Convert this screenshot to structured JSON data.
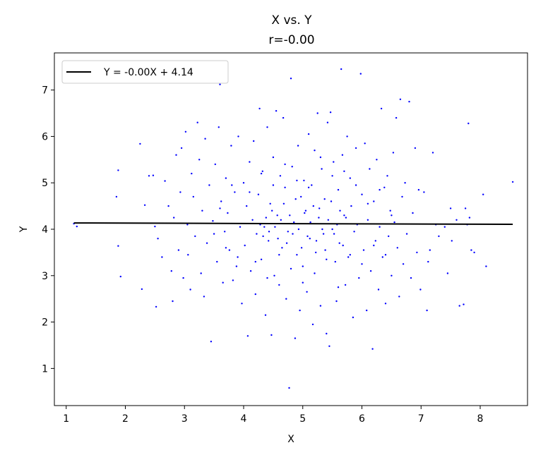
{
  "chart_data": {
    "type": "scatter",
    "title": "X vs. Y",
    "subtitle": "r=-0.00",
    "xlabel": "X",
    "ylabel": "Y",
    "xlim": [
      0.8,
      8.8
    ],
    "ylim": [
      0.2,
      7.8
    ],
    "xticks": [
      1,
      2,
      3,
      4,
      5,
      6,
      7,
      8
    ],
    "yticks": [
      1,
      2,
      3,
      4,
      5,
      6,
      7
    ],
    "grid": false,
    "legend_position": "top-left",
    "fit_line": {
      "label": "Y = -0.00X + 4.14",
      "slope": -0.004,
      "intercept": 4.14,
      "x_range": [
        1.13,
        8.55
      ],
      "color": "#000000"
    },
    "point_color": "#0000ff",
    "points": [
      [
        1.13,
        4.12
      ],
      [
        1.18,
        4.06
      ],
      [
        1.85,
        4.7
      ],
      [
        1.88,
        5.27
      ],
      [
        1.88,
        3.64
      ],
      [
        1.92,
        2.98
      ],
      [
        2.25,
        5.84
      ],
      [
        2.28,
        2.71
      ],
      [
        2.33,
        4.52
      ],
      [
        2.4,
        5.15
      ],
      [
        2.47,
        5.16
      ],
      [
        2.5,
        4.06
      ],
      [
        2.52,
        2.33
      ],
      [
        2.55,
        3.8
      ],
      [
        2.62,
        3.4
      ],
      [
        2.67,
        5.04
      ],
      [
        2.73,
        4.5
      ],
      [
        2.78,
        3.1
      ],
      [
        2.8,
        2.45
      ],
      [
        2.82,
        4.25
      ],
      [
        2.86,
        5.6
      ],
      [
        2.9,
        3.55
      ],
      [
        2.93,
        4.8
      ],
      [
        2.95,
        5.75
      ],
      [
        2.98,
        2.95
      ],
      [
        3.02,
        6.1
      ],
      [
        3.05,
        4.1
      ],
      [
        3.06,
        3.45
      ],
      [
        3.1,
        2.7
      ],
      [
        3.12,
        5.2
      ],
      [
        3.15,
        4.7
      ],
      [
        3.18,
        3.85
      ],
      [
        3.22,
        6.3
      ],
      [
        3.25,
        5.5
      ],
      [
        3.28,
        3.05
      ],
      [
        3.3,
        4.4
      ],
      [
        3.33,
        2.55
      ],
      [
        3.35,
        5.95
      ],
      [
        3.38,
        3.7
      ],
      [
        3.42,
        4.95
      ],
      [
        3.45,
        1.58
      ],
      [
        3.48,
        4.18
      ],
      [
        3.52,
        5.4
      ],
      [
        3.55,
        3.3
      ],
      [
        3.58,
        6.2
      ],
      [
        3.6,
        7.12
      ],
      [
        3.62,
        4.6
      ],
      [
        3.65,
        2.85
      ],
      [
        3.68,
        3.95
      ],
      [
        3.7,
        5.1
      ],
      [
        3.73,
        4.35
      ],
      [
        3.76,
        3.55
      ],
      [
        3.79,
        5.8
      ],
      [
        3.82,
        2.9
      ],
      [
        3.85,
        4.8
      ],
      [
        3.88,
        3.2
      ],
      [
        3.91,
        6.0
      ],
      [
        3.94,
        4.05
      ],
      [
        3.97,
        2.4
      ],
      [
        4.0,
        5.0
      ],
      [
        4.02,
        3.65
      ],
      [
        4.05,
        4.5
      ],
      [
        4.07,
        1.7
      ],
      [
        4.1,
        5.45
      ],
      [
        4.12,
        3.1
      ],
      [
        4.15,
        4.2
      ],
      [
        4.17,
        5.9
      ],
      [
        4.2,
        2.6
      ],
      [
        4.22,
        3.9
      ],
      [
        4.25,
        4.75
      ],
      [
        4.27,
        6.6
      ],
      [
        4.3,
        3.35
      ],
      [
        4.32,
        5.25
      ],
      [
        4.35,
        4.05
      ],
      [
        4.37,
        2.15
      ],
      [
        4.4,
        6.2
      ],
      [
        4.42,
        3.75
      ],
      [
        4.45,
        4.55
      ],
      [
        4.47,
        1.72
      ],
      [
        4.5,
        5.55
      ],
      [
        4.52,
        3.0
      ],
      [
        4.55,
        6.55
      ],
      [
        4.57,
        4.3
      ],
      [
        4.6,
        2.8
      ],
      [
        4.62,
        5.15
      ],
      [
        4.65,
        3.6
      ],
      [
        4.67,
        6.4
      ],
      [
        4.7,
        4.9
      ],
      [
        4.72,
        2.5
      ],
      [
        4.75,
        3.95
      ],
      [
        4.77,
        0.58
      ],
      [
        4.8,
        7.25
      ],
      [
        4.82,
        5.35
      ],
      [
        4.85,
        4.15
      ],
      [
        4.87,
        1.65
      ],
      [
        4.9,
        3.45
      ],
      [
        4.92,
        5.8
      ],
      [
        4.95,
        2.25
      ],
      [
        4.97,
        4.7
      ],
      [
        5.0,
        3.2
      ],
      [
        5.02,
        5.05
      ],
      [
        5.05,
        4.4
      ],
      [
        5.07,
        2.65
      ],
      [
        5.1,
        6.05
      ],
      [
        5.12,
        3.8
      ],
      [
        5.15,
        4.95
      ],
      [
        5.17,
        1.95
      ],
      [
        5.2,
        5.7
      ],
      [
        5.22,
        3.5
      ],
      [
        5.25,
        6.5
      ],
      [
        5.27,
        4.25
      ],
      [
        5.3,
        2.35
      ],
      [
        5.32,
        5.3
      ],
      [
        5.35,
        3.9
      ],
      [
        5.37,
        4.65
      ],
      [
        5.4,
        1.75
      ],
      [
        5.42,
        6.3
      ],
      [
        5.45,
        1.48
      ],
      [
        5.47,
        6.52
      ],
      [
        5.5,
        4.0
      ],
      [
        5.52,
        5.45
      ],
      [
        5.55,
        3.3
      ],
      [
        5.57,
        2.45
      ],
      [
        5.6,
        4.85
      ],
      [
        5.62,
        3.7
      ],
      [
        5.65,
        7.45
      ],
      [
        5.67,
        5.6
      ],
      [
        5.7,
        4.3
      ],
      [
        5.72,
        2.8
      ],
      [
        5.75,
        6.0
      ],
      [
        5.77,
        3.4
      ],
      [
        5.8,
        5.1
      ],
      [
        5.82,
        4.5
      ],
      [
        5.85,
        2.1
      ],
      [
        5.87,
        3.95
      ],
      [
        5.9,
        5.75
      ],
      [
        5.92,
        4.1
      ],
      [
        5.95,
        2.95
      ],
      [
        5.98,
        7.35
      ],
      [
        6.0,
        4.75
      ],
      [
        6.03,
        3.55
      ],
      [
        6.05,
        5.85
      ],
      [
        6.08,
        2.25
      ],
      [
        6.1,
        4.2
      ],
      [
        6.13,
        5.3
      ],
      [
        6.15,
        3.1
      ],
      [
        6.18,
        1.42
      ],
      [
        6.2,
        4.6
      ],
      [
        6.23,
        3.75
      ],
      [
        6.25,
        5.5
      ],
      [
        6.28,
        2.7
      ],
      [
        6.3,
        4.05
      ],
      [
        6.33,
        6.6
      ],
      [
        6.35,
        3.4
      ],
      [
        6.38,
        4.9
      ],
      [
        6.4,
        2.4
      ],
      [
        6.43,
        5.15
      ],
      [
        6.45,
        3.85
      ],
      [
        6.48,
        4.4
      ],
      [
        6.5,
        3.0
      ],
      [
        6.53,
        5.65
      ],
      [
        6.55,
        4.15
      ],
      [
        6.58,
        6.4
      ],
      [
        6.6,
        3.6
      ],
      [
        6.63,
        2.55
      ],
      [
        6.65,
        6.8
      ],
      [
        6.68,
        4.7
      ],
      [
        6.7,
        3.25
      ],
      [
        6.73,
        5.0
      ],
      [
        6.76,
        3.9
      ],
      [
        6.8,
        6.75
      ],
      [
        6.83,
        2.95
      ],
      [
        6.86,
        4.35
      ],
      [
        6.9,
        5.75
      ],
      [
        6.93,
        3.5
      ],
      [
        6.96,
        4.85
      ],
      [
        6.99,
        2.7
      ],
      [
        7.05,
        4.8
      ],
      [
        7.1,
        2.25
      ],
      [
        7.12,
        3.3
      ],
      [
        7.15,
        3.55
      ],
      [
        7.2,
        5.65
      ],
      [
        7.25,
        4.1
      ],
      [
        7.3,
        3.85
      ],
      [
        7.4,
        4.05
      ],
      [
        7.45,
        3.05
      ],
      [
        7.5,
        4.45
      ],
      [
        7.52,
        3.75
      ],
      [
        7.6,
        4.2
      ],
      [
        7.65,
        2.35
      ],
      [
        7.72,
        2.38
      ],
      [
        7.75,
        4.45
      ],
      [
        7.78,
        4.1
      ],
      [
        7.8,
        6.28
      ],
      [
        7.82,
        4.25
      ],
      [
        7.85,
        3.55
      ],
      [
        7.9,
        3.5
      ],
      [
        8.05,
        4.75
      ],
      [
        8.1,
        3.2
      ],
      [
        8.55,
        5.02
      ],
      [
        4.28,
        4.1
      ],
      [
        4.33,
        3.85
      ],
      [
        4.38,
        4.25
      ],
      [
        4.43,
        3.95
      ],
      [
        4.48,
        4.4
      ],
      [
        4.53,
        4.05
      ],
      [
        4.58,
        3.8
      ],
      [
        4.63,
        4.2
      ],
      [
        4.68,
        4.55
      ],
      [
        4.73,
        3.7
      ],
      [
        4.78,
        4.3
      ],
      [
        4.83,
        3.9
      ],
      [
        4.88,
        4.65
      ],
      [
        4.93,
        4.0
      ],
      [
        4.98,
        3.6
      ],
      [
        5.03,
        4.35
      ],
      [
        5.08,
        3.85
      ],
      [
        5.13,
        4.15
      ],
      [
        5.18,
        4.5
      ],
      [
        5.23,
        3.75
      ],
      [
        5.28,
        4.45
      ],
      [
        5.33,
        4.0
      ],
      [
        5.38,
        3.55
      ],
      [
        5.43,
        4.2
      ],
      [
        5.48,
        4.6
      ],
      [
        5.53,
        3.9
      ],
      [
        5.58,
        4.1
      ],
      [
        5.63,
        4.4
      ],
      [
        5.68,
        3.65
      ],
      [
        5.73,
        4.25
      ],
      [
        4.1,
        4.8
      ],
      [
        4.2,
        3.3
      ],
      [
        4.3,
        5.2
      ],
      [
        4.4,
        2.95
      ],
      [
        4.5,
        4.95
      ],
      [
        4.6,
        3.45
      ],
      [
        4.7,
        5.4
      ],
      [
        4.8,
        3.15
      ],
      [
        4.9,
        5.05
      ],
      [
        5.0,
        2.85
      ],
      [
        5.1,
        4.9
      ],
      [
        5.2,
        3.05
      ],
      [
        5.3,
        5.55
      ],
      [
        5.4,
        3.35
      ],
      [
        5.5,
        5.15
      ],
      [
        5.6,
        2.75
      ],
      [
        5.7,
        5.25
      ],
      [
        5.8,
        3.45
      ],
      [
        5.9,
        4.95
      ],
      [
        6.0,
        3.25
      ],
      [
        3.6,
        4.45
      ],
      [
        3.7,
        3.6
      ],
      [
        3.8,
        4.95
      ],
      [
        3.9,
        3.4
      ],
      [
        6.1,
        4.55
      ],
      [
        6.2,
        3.65
      ],
      [
        6.3,
        4.85
      ],
      [
        6.4,
        3.45
      ],
      [
        3.5,
        3.9
      ],
      [
        6.5,
        4.3
      ]
    ]
  }
}
